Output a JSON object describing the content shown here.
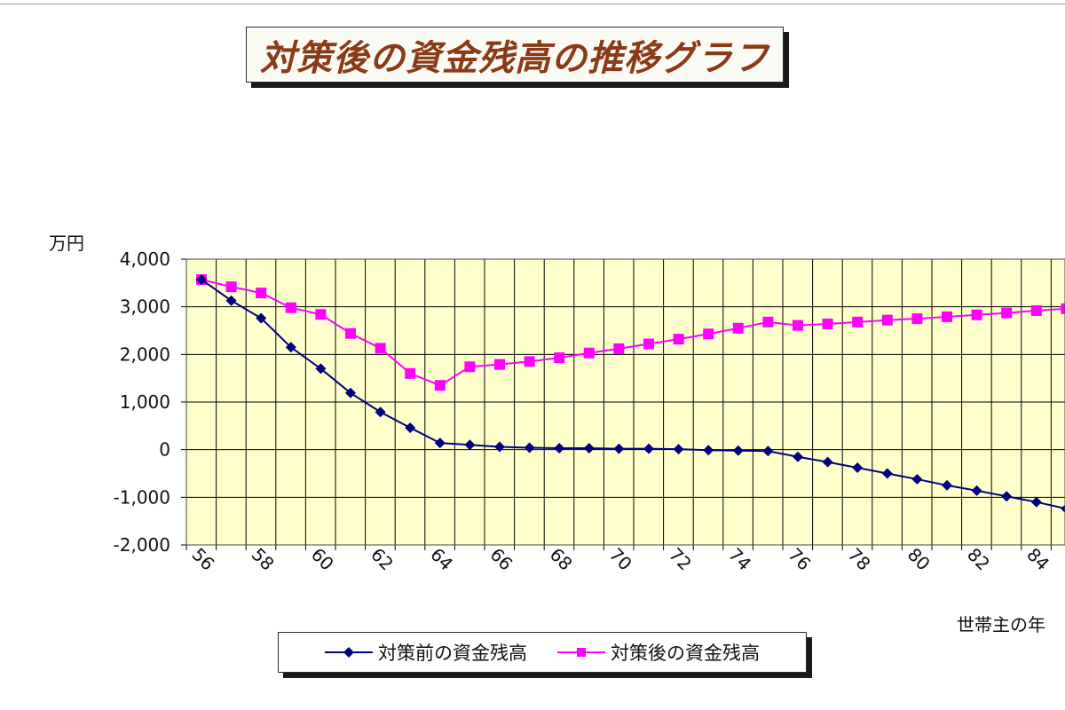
{
  "colors": {
    "plot_background": "#ffffcc",
    "grid": "#000000",
    "before_series": "#000080",
    "after_series": "#ff00ff",
    "title_text": "#8b3a16"
  },
  "chart_data": {
    "type": "line",
    "title": "対策後の資金残高の推移グラフ",
    "ylabel": "万円",
    "xlabel": "世帯主の年",
    "ylim": [
      -2000,
      4000
    ],
    "yticks": [
      4000,
      3000,
      2000,
      1000,
      0,
      -1000,
      -2000
    ],
    "ytick_labels": [
      "4,000",
      "3,000",
      "2,000",
      "1,000",
      "0",
      "-1,000",
      "-2,000"
    ],
    "xlim": [
      56,
      85
    ],
    "xtick_labels": [
      "56",
      "58",
      "60",
      "62",
      "64",
      "66",
      "68",
      "70",
      "72",
      "74",
      "76",
      "78",
      "80",
      "82",
      "84"
    ],
    "grid": true,
    "legend": "bottom",
    "x": [
      56,
      57,
      58,
      59,
      60,
      61,
      62,
      63,
      64,
      65,
      66,
      67,
      68,
      69,
      70,
      71,
      72,
      73,
      74,
      75,
      76,
      77,
      78,
      79,
      80,
      81,
      82,
      83,
      84,
      85
    ],
    "series": [
      {
        "name": "対策前の資金残高",
        "marker": "diamond",
        "values": [
          3570,
          3130,
          2760,
          2150,
          1700,
          1190,
          790,
          460,
          140,
          100,
          60,
          40,
          30,
          30,
          20,
          20,
          10,
          -10,
          -20,
          -30,
          -150,
          -260,
          -380,
          -500,
          -620,
          -750,
          -860,
          -980,
          -1100,
          -1240
        ]
      },
      {
        "name": "対策後の資金残高",
        "marker": "square",
        "values": [
          3570,
          3420,
          3290,
          2980,
          2840,
          2440,
          2130,
          1600,
          1350,
          1740,
          1790,
          1850,
          1930,
          2030,
          2120,
          2220,
          2320,
          2430,
          2550,
          2680,
          2610,
          2640,
          2680,
          2720,
          2750,
          2790,
          2830,
          2870,
          2920,
          2960
        ]
      }
    ]
  }
}
